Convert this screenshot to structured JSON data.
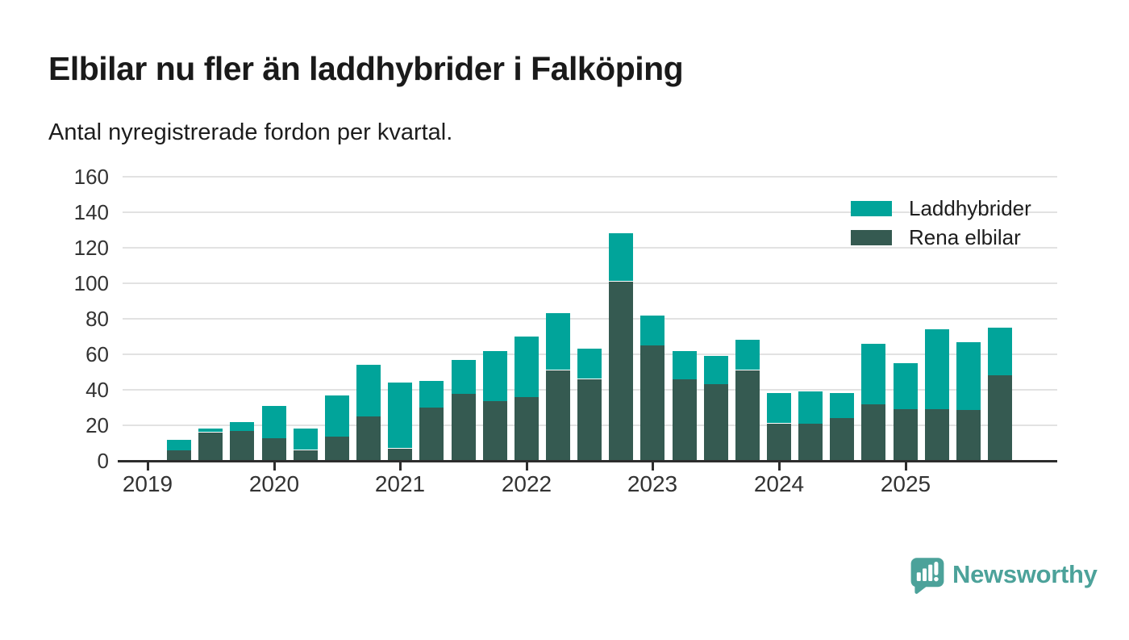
{
  "title": "Elbilar nu fler än laddhybrider i Falköping",
  "subtitle": "Antal nyregistrerade fordon per kvartal.",
  "legend": [
    {
      "label": "Laddhybrider",
      "color": "#01a49a"
    },
    {
      "label": "Rena elbilar",
      "color": "#355a51"
    }
  ],
  "branding": {
    "name": "Newsworthy",
    "color": "#4ca29a"
  },
  "chart_data": {
    "type": "bar",
    "stacked": true,
    "title": "Elbilar nu fler än laddhybrider i Falköping",
    "subtitle": "Antal nyregistrerade fordon per kvartal.",
    "xlabel": "",
    "ylabel": "",
    "grid": true,
    "legend_position": "top-right",
    "ylim": [
      0,
      160
    ],
    "y_ticks": [
      0,
      20,
      40,
      60,
      80,
      100,
      120,
      140,
      160
    ],
    "x_tick_labels": [
      "2019",
      "2020",
      "2021",
      "2022",
      "2023",
      "2024",
      "2025"
    ],
    "categories": [
      "2019-K2",
      "2019-K3",
      "2019-K4",
      "2020-K1",
      "2020-K2",
      "2020-K3",
      "2020-K4",
      "2021-K1",
      "2021-K2",
      "2021-K3",
      "2021-K4",
      "2022-K1",
      "2022-K2",
      "2022-K3",
      "2022-K4",
      "2023-K1",
      "2023-K2",
      "2023-K3",
      "2023-K4",
      "2024-K1",
      "2024-K2",
      "2024-K3",
      "2024-K4",
      "2025-K1",
      "2025-K2",
      "2025-K3",
      "2025-K4"
    ],
    "series": [
      {
        "name": "Laddhybrider",
        "color": "#01a49a",
        "values": [
          6,
          2,
          5,
          18,
          12,
          23,
          29,
          37,
          15,
          19,
          28,
          34,
          32,
          17,
          27,
          17,
          16,
          16,
          17,
          17,
          18,
          14,
          34,
          26,
          45,
          38,
          27
        ]
      },
      {
        "name": "Rena elbilar",
        "color": "#355a51",
        "values": [
          6,
          16,
          17,
          13,
          6,
          14,
          25,
          7,
          30,
          38,
          34,
          36,
          51,
          46,
          101,
          65,
          46,
          43,
          51,
          21,
          21,
          24,
          32,
          29,
          29,
          29,
          48
        ]
      }
    ],
    "totals": [
      12,
      18,
      22,
      31,
      18,
      37,
      54,
      44,
      45,
      57,
      62,
      70,
      83,
      63,
      128,
      82,
      62,
      59,
      68,
      38,
      39,
      38,
      66,
      55,
      74,
      67,
      75
    ]
  }
}
